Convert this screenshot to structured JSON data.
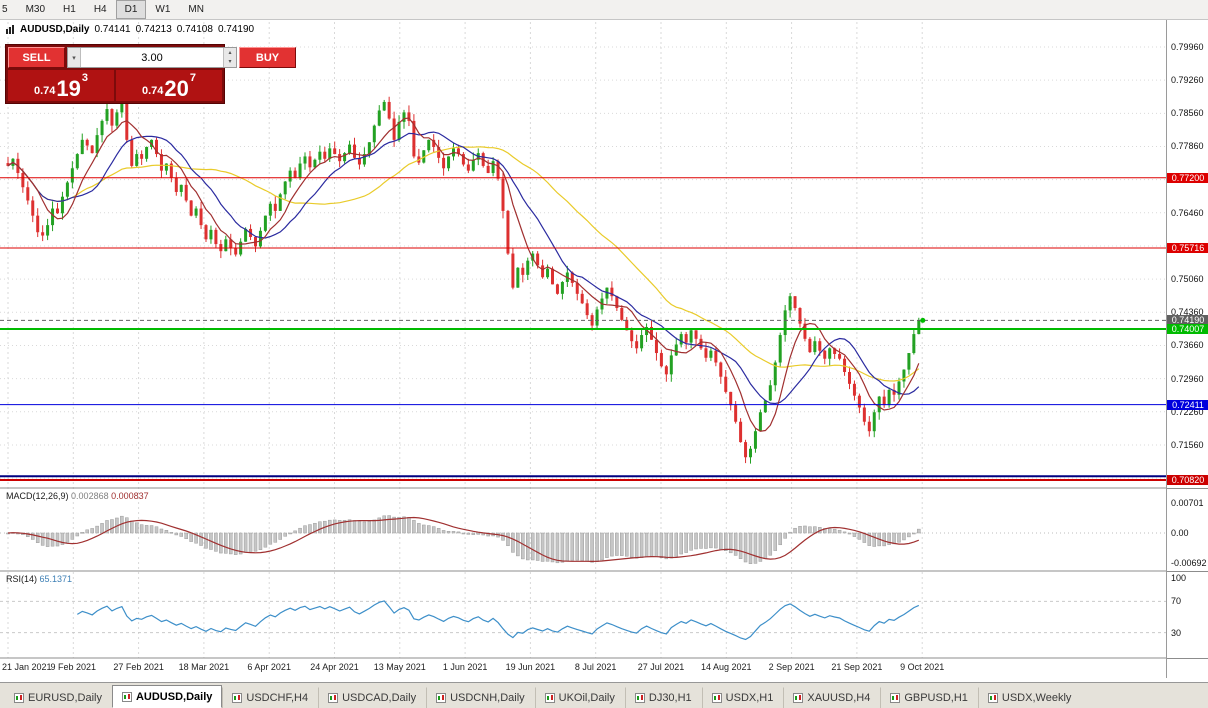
{
  "toolbar": {
    "timeframes": [
      "5",
      "M30",
      "H1",
      "H4",
      "D1",
      "W1",
      "MN"
    ],
    "active": "D1"
  },
  "chart": {
    "title": {
      "symbol": "AUDUSD,Daily",
      "open": "0.74141",
      "high": "0.74213",
      "low": "0.74108",
      "close": "0.74190"
    },
    "trade_widget": {
      "sell_label": "SELL",
      "buy_label": "BUY",
      "volume": "3.00",
      "sell_price": {
        "prefix": "0.74",
        "big": "19",
        "sup": "3"
      },
      "buy_price": {
        "prefix": "0.74",
        "big": "20",
        "sup": "7"
      }
    }
  },
  "macd": {
    "label": "MACD(12,26,9)",
    "value1": "0.002868",
    "value2": "0.000837"
  },
  "rsi": {
    "label": "RSI(14)",
    "value": "65.1371"
  },
  "tabs": [
    {
      "label": "EURUSD,Daily"
    },
    {
      "label": "AUDUSD,Daily",
      "active": true
    },
    {
      "label": "USDCHF,H4"
    },
    {
      "label": "USDCAD,Daily"
    },
    {
      "label": "USDCNH,Daily"
    },
    {
      "label": "UKOil,Daily"
    },
    {
      "label": "DJ30,H1"
    },
    {
      "label": "USDX,H1"
    },
    {
      "label": "XAUUSD,H4"
    },
    {
      "label": "GBPUSD,H1"
    },
    {
      "label": "USDX,Weekly"
    }
  ],
  "chart_data": {
    "type": "candlestick",
    "symbol": "AUDUSD",
    "timeframe": "Daily",
    "x_labels": [
      "21 Jan 2021",
      "9 Feb 2021",
      "27 Feb 2021",
      "18 Mar 2021",
      "6 Apr 2021",
      "24 Apr 2021",
      "13 May 2021",
      "1 Jun 2021",
      "19 Jun 2021",
      "8 Jul 2021",
      "27 Jul 2021",
      "14 Aug 2021",
      "2 Sep 2021",
      "21 Sep 2021",
      "9 Oct 2021"
    ],
    "last_ohlc": {
      "open": 0.74141,
      "high": 0.74213,
      "low": 0.74108,
      "close": 0.7419
    },
    "closes": [
      0.7745,
      0.776,
      0.773,
      0.77,
      0.7672,
      0.764,
      0.7605,
      0.7598,
      0.762,
      0.7655,
      0.7645,
      0.768,
      0.771,
      0.774,
      0.777,
      0.78,
      0.7788,
      0.7772,
      0.781,
      0.784,
      0.7865,
      0.783,
      0.7858,
      0.788,
      0.78,
      0.7745,
      0.777,
      0.776,
      0.7785,
      0.78,
      0.777,
      0.7735,
      0.775,
      0.772,
      0.769,
      0.7705,
      0.7672,
      0.764,
      0.7655,
      0.762,
      0.759,
      0.761,
      0.758,
      0.7565,
      0.759,
      0.7572,
      0.7558,
      0.7585,
      0.7612,
      0.7595,
      0.7575,
      0.7608,
      0.764,
      0.7665,
      0.765,
      0.7685,
      0.7712,
      0.7735,
      0.772,
      0.775,
      0.7765,
      0.7742,
      0.7758,
      0.7775,
      0.776,
      0.7782,
      0.777,
      0.7755,
      0.7772,
      0.779,
      0.7762,
      0.7748,
      0.777,
      0.7795,
      0.783,
      0.7862,
      0.788,
      0.7845,
      0.78,
      0.7838,
      0.7858,
      0.784,
      0.7765,
      0.7752,
      0.7778,
      0.78,
      0.7785,
      0.7762,
      0.774,
      0.7765,
      0.7782,
      0.777,
      0.7748,
      0.7735,
      0.7758,
      0.7772,
      0.7745,
      0.773,
      0.7755,
      0.7718,
      0.765,
      0.756,
      0.7488,
      0.753,
      0.7515,
      0.7545,
      0.756,
      0.7535,
      0.751,
      0.7528,
      0.7495,
      0.7475,
      0.75,
      0.752,
      0.7498,
      0.7475,
      0.7455,
      0.743,
      0.7408,
      0.7442,
      0.7465,
      0.7488,
      0.747,
      0.7445,
      0.742,
      0.7398,
      0.7375,
      0.736,
      0.7388,
      0.7405,
      0.7378,
      0.735,
      0.7322,
      0.7305,
      0.7345,
      0.7368,
      0.739,
      0.7372,
      0.7398,
      0.738,
      0.736,
      0.734,
      0.7355,
      0.733,
      0.73,
      0.7268,
      0.724,
      0.7205,
      0.7162,
      0.713,
      0.7148,
      0.7185,
      0.7225,
      0.725,
      0.7282,
      0.733,
      0.7388,
      0.744,
      0.747,
      0.7445,
      0.7412,
      0.738,
      0.7352,
      0.7375,
      0.7355,
      0.7338,
      0.736,
      0.7348,
      0.7338,
      0.731,
      0.7285,
      0.726,
      0.7235,
      0.7205,
      0.7185,
      0.7225,
      0.7258,
      0.724,
      0.7272,
      0.7262,
      0.729,
      0.7315,
      0.735,
      0.739,
      0.7419
    ],
    "y_axis": {
      "top": 0.7996,
      "bottom": 0.7082,
      "grid_step": 0.007,
      "ticks": [
        0.7996,
        0.7926,
        0.7856,
        0.7786,
        0.7646,
        0.7506,
        0.7436,
        0.7366,
        0.7296,
        0.7226,
        0.7156
      ]
    },
    "levels": [
      {
        "price": 0.772,
        "color": "#dd0000",
        "width": 1,
        "badge": true
      },
      {
        "price": 0.75716,
        "color": "#dd0000",
        "width": 1,
        "badge": true
      },
      {
        "price": 0.7419,
        "color": "#606060",
        "width": 1,
        "dash": true,
        "badge": true
      },
      {
        "price": 0.74007,
        "color": "#00bb00",
        "width": 2,
        "badge": true
      },
      {
        "price": 0.72411,
        "color": "#0000dd",
        "width": 1,
        "badge": true
      },
      {
        "price": 0.709,
        "color": "#000080",
        "width": 2,
        "badge": false
      },
      {
        "price": 0.7082,
        "color": "#cc0000",
        "width": 2,
        "badge": true
      }
    ],
    "moving_averages": [
      {
        "period": 34,
        "color": "#e9cb2a"
      },
      {
        "period": 14,
        "color": "#2b2ba0"
      },
      {
        "period": 7,
        "color": "#a03030"
      }
    ],
    "colors": {
      "up": "#23a123",
      "down": "#dd3030",
      "grid": "#d9d9d9"
    },
    "macd": {
      "params": [
        12,
        26,
        9
      ],
      "axis": [
        0.00701,
        0,
        -0.00692
      ],
      "hist_color": "#c6c6c6",
      "signal_color": "#a03030"
    },
    "rsi": {
      "period": 14,
      "axis": [
        100,
        70,
        30
      ],
      "levels": [
        70,
        30
      ],
      "color": "#3d8fc9"
    }
  }
}
